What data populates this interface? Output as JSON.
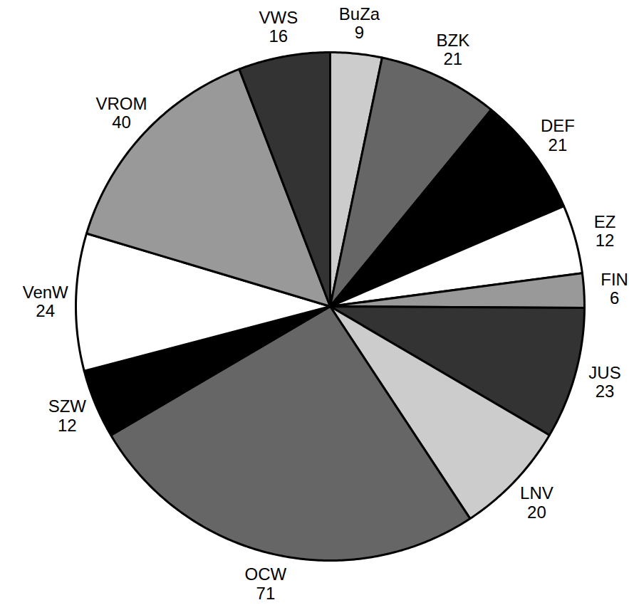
{
  "chart_data": {
    "type": "pie",
    "categories": [
      "BuZa",
      "BZK",
      "DEF",
      "EZ",
      "FIN",
      "JUS",
      "LNV",
      "OCW",
      "SZW",
      "VenW",
      "VROM",
      "VWS"
    ],
    "values": [
      9,
      21,
      21,
      12,
      6,
      23,
      20,
      71,
      12,
      24,
      40,
      16
    ],
    "colors": [
      "#cccccc",
      "#666666",
      "#000000",
      "#ffffff",
      "#999999",
      "#333333",
      "#cccccc",
      "#666666",
      "#000000",
      "#ffffff",
      "#999999",
      "#333333"
    ],
    "data_labels": true
  }
}
